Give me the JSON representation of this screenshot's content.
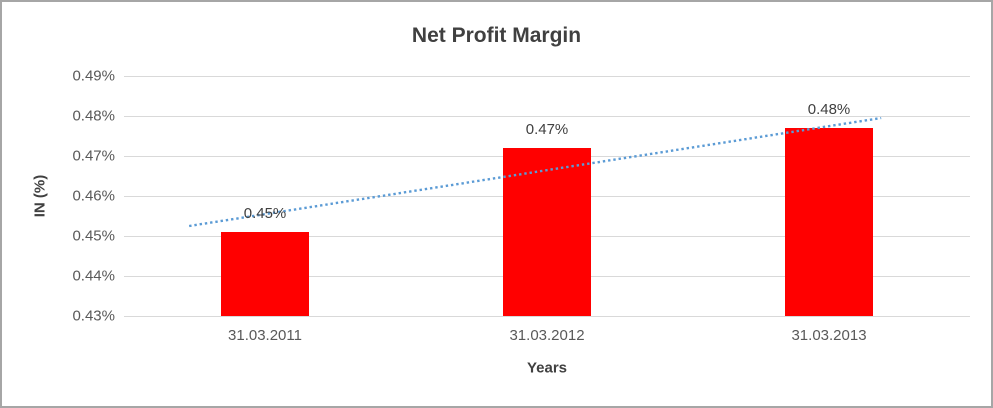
{
  "chart_data": {
    "type": "bar",
    "title": "Net Profit Margin",
    "xlabel": "Years",
    "ylabel": "IN (%)",
    "categories": [
      "31.03.2011",
      "31.03.2012",
      "31.03.2013"
    ],
    "values": [
      0.451,
      0.472,
      0.477
    ],
    "data_labels": [
      "0.45%",
      "0.47%",
      "0.48%"
    ],
    "ylim": [
      0.43,
      0.49
    ],
    "ytick_labels": [
      "0.43%",
      "0.44%",
      "0.45%",
      "0.46%",
      "0.47%",
      "0.48%",
      "0.49%"
    ],
    "grid": true,
    "legend": false,
    "bar_color": "#ff0000",
    "gridline_color": "#d9d9d9",
    "trendline": {
      "type": "linear",
      "style": "dotted",
      "color": "#5b9bd5",
      "start_frac": 0.077,
      "end_frac": 0.895,
      "start_value": 0.4525,
      "end_value": 0.4795
    }
  }
}
